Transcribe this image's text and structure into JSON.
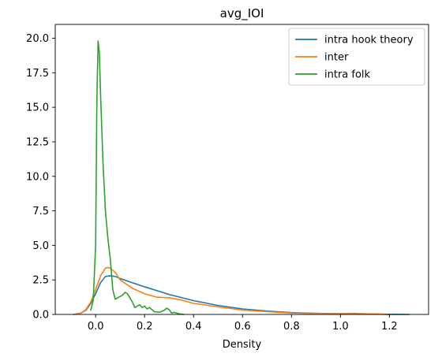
{
  "chart_data": {
    "type": "line",
    "title": "avg_IOI",
    "xlabel": "Density",
    "ylabel": "",
    "xlim": [
      -0.165,
      1.36
    ],
    "ylim": [
      0,
      21.0
    ],
    "xticks": [
      0.0,
      0.2,
      0.4,
      0.6,
      0.8,
      1.0,
      1.2
    ],
    "xtick_labels": [
      "0.0",
      "0.2",
      "0.4",
      "0.6",
      "0.8",
      "1.0",
      "1.2"
    ],
    "yticks": [
      0.0,
      2.5,
      5.0,
      7.5,
      10.0,
      12.5,
      15.0,
      17.5,
      20.0
    ],
    "ytick_labels": [
      "0.0",
      "2.5",
      "5.0",
      "7.5",
      "10.0",
      "12.5",
      "15.0",
      "17.5",
      "20.0"
    ],
    "grid": false,
    "legend": "top-right",
    "series": [
      {
        "name": "intra hook theory",
        "color": "#1f77b4",
        "x": [
          -0.09,
          -0.06,
          -0.04,
          -0.02,
          0.0,
          0.02,
          0.04,
          0.06,
          0.08,
          0.1,
          0.15,
          0.2,
          0.3,
          0.4,
          0.5,
          0.6,
          0.7,
          0.8,
          0.9,
          1.0,
          1.1,
          1.2,
          1.28
        ],
        "y": [
          0.0,
          0.1,
          0.3,
          0.8,
          1.5,
          2.3,
          2.75,
          2.8,
          2.75,
          2.6,
          2.3,
          2.0,
          1.45,
          1.0,
          0.65,
          0.4,
          0.25,
          0.13,
          0.08,
          0.05,
          0.03,
          0.01,
          0.0
        ]
      },
      {
        "name": "inter",
        "color": "#ff7f0e",
        "x": [
          -0.09,
          -0.06,
          -0.04,
          -0.02,
          0.0,
          0.02,
          0.04,
          0.05,
          0.06,
          0.08,
          0.1,
          0.15,
          0.2,
          0.25,
          0.3,
          0.35,
          0.4,
          0.5,
          0.6,
          0.7,
          0.8,
          0.9,
          1.0,
          1.05,
          1.1,
          1.2
        ],
        "y": [
          0.0,
          0.1,
          0.35,
          0.9,
          1.8,
          2.8,
          3.35,
          3.4,
          3.35,
          3.05,
          2.5,
          1.9,
          1.5,
          1.25,
          1.2,
          1.05,
          0.8,
          0.55,
          0.32,
          0.2,
          0.1,
          0.07,
          0.06,
          0.08,
          0.05,
          0.0
        ]
      },
      {
        "name": "intra folk",
        "color": "#2ca02c",
        "x": [
          -0.02,
          -0.01,
          0.0,
          0.005,
          0.01,
          0.015,
          0.02,
          0.03,
          0.04,
          0.05,
          0.06,
          0.07,
          0.08,
          0.09,
          0.1,
          0.11,
          0.12,
          0.13,
          0.14,
          0.15,
          0.16,
          0.17,
          0.18,
          0.19,
          0.2,
          0.21,
          0.22,
          0.24,
          0.26,
          0.28,
          0.29,
          0.3,
          0.31,
          0.32,
          0.34,
          0.36
        ],
        "y": [
          0.3,
          1.0,
          5.0,
          15.5,
          19.8,
          19.0,
          16.0,
          11.0,
          7.5,
          5.5,
          4.0,
          1.8,
          1.1,
          1.2,
          1.3,
          1.4,
          1.6,
          1.5,
          1.2,
          0.9,
          0.5,
          0.6,
          0.7,
          0.5,
          0.6,
          0.4,
          0.5,
          0.2,
          0.15,
          0.3,
          0.45,
          0.35,
          0.1,
          0.15,
          0.05,
          0.0
        ]
      }
    ]
  }
}
